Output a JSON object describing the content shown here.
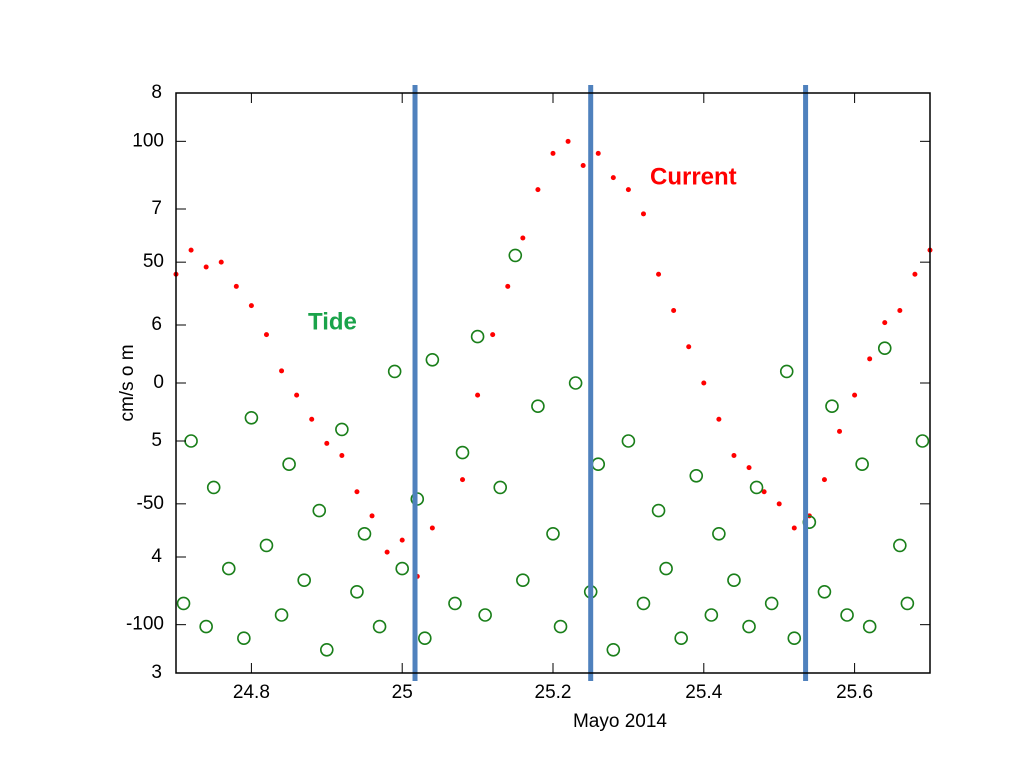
{
  "chart_data": {
    "type": "scatter",
    "xlabel": "Mayo 2014",
    "ylabel": "cm/s o m",
    "annotations": [
      {
        "text": "Current",
        "color": "#ff0000"
      },
      {
        "text": "Tide",
        "color": "#1aa34a"
      }
    ],
    "xlim": [
      24.7,
      25.7
    ],
    "xticks": [
      24.8,
      25.0,
      25.2,
      25.4,
      25.6
    ],
    "ylim": [
      -120,
      120
    ],
    "yticks": [
      -100,
      -50,
      0,
      50,
      100
    ],
    "y2lim": [
      3,
      8
    ],
    "y2ticks": [
      3,
      4,
      5,
      6,
      7,
      8
    ],
    "markers": {
      "color": "#4f81bd",
      "x": [
        25.017,
        25.25,
        25.535
      ]
    },
    "series": [
      {
        "name": "Current",
        "color": "#ff0000",
        "x": [
          24.7,
          24.72,
          24.74,
          24.76,
          24.78,
          24.8,
          24.82,
          24.84,
          24.86,
          24.88,
          24.9,
          24.92,
          24.94,
          24.96,
          24.98,
          25.0,
          25.02,
          25.04,
          25.08,
          25.1,
          25.12,
          25.14,
          25.16,
          25.18,
          25.2,
          25.22,
          25.24,
          25.26,
          25.28,
          25.3,
          25.32,
          25.34,
          25.36,
          25.38,
          25.4,
          25.42,
          25.44,
          25.46,
          25.48,
          25.5,
          25.52,
          25.54,
          25.56,
          25.58,
          25.6,
          25.62,
          25.64,
          25.66,
          25.68,
          25.7
        ],
        "values": [
          45,
          55,
          48,
          50,
          40,
          32,
          20,
          5,
          -5,
          -15,
          -25,
          -30,
          -45,
          -55,
          -70,
          -65,
          -80,
          -60,
          -40,
          -5,
          20,
          40,
          60,
          80,
          95,
          100,
          90,
          95,
          85,
          80,
          70,
          45,
          30,
          15,
          0,
          -15,
          -30,
          -35,
          -45,
          -50,
          -60,
          -55,
          -40,
          -20,
          -5,
          10,
          25,
          30,
          45,
          55
        ]
      },
      {
        "name": "Tide",
        "color": "#1a7f1a",
        "axis": "y2",
        "x": [
          24.71,
          24.72,
          24.74,
          24.75,
          24.77,
          24.79,
          24.8,
          24.82,
          24.84,
          24.85,
          24.87,
          24.89,
          24.9,
          24.92,
          24.94,
          24.95,
          24.97,
          24.99,
          25.0,
          25.02,
          25.03,
          25.04,
          25.07,
          25.08,
          25.1,
          25.11,
          25.13,
          25.15,
          25.16,
          25.18,
          25.2,
          25.21,
          25.23,
          25.25,
          25.26,
          25.28,
          25.3,
          25.32,
          25.34,
          25.35,
          25.37,
          25.39,
          25.41,
          25.42,
          25.44,
          25.46,
          25.47,
          25.49,
          25.51,
          25.52,
          25.54,
          25.56,
          25.57,
          25.59,
          25.61,
          25.62,
          25.64,
          25.66,
          25.67,
          25.69
        ],
        "values": [
          3.6,
          5.0,
          3.4,
          4.6,
          3.9,
          3.3,
          5.2,
          4.1,
          3.5,
          4.8,
          3.8,
          4.4,
          3.2,
          5.1,
          3.7,
          4.2,
          3.4,
          5.6,
          3.9,
          4.5,
          3.3,
          5.7,
          3.6,
          4.9,
          5.9,
          3.5,
          4.6,
          6.6,
          3.8,
          5.3,
          4.2,
          3.4,
          5.5,
          3.7,
          4.8,
          3.2,
          5.0,
          3.6,
          4.4,
          3.9,
          3.3,
          4.7,
          3.5,
          4.2,
          3.8,
          3.4,
          4.6,
          3.6,
          5.6,
          3.3,
          4.3,
          3.7,
          5.3,
          3.5,
          4.8,
          3.4,
          5.8,
          4.1,
          3.6,
          5.0
        ]
      }
    ]
  }
}
